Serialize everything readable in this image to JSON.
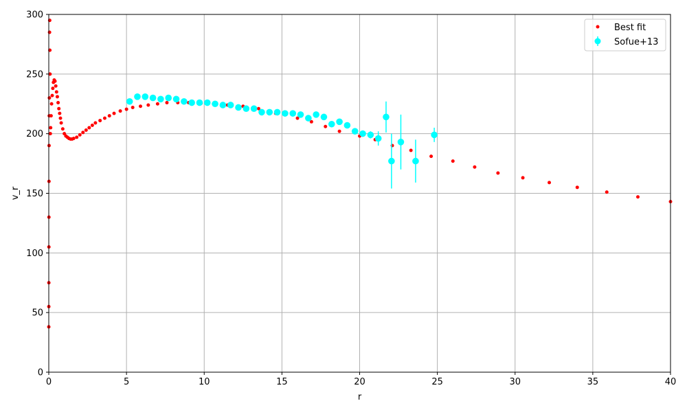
{
  "chart_data": {
    "type": "scatter",
    "title": "",
    "xlabel": "r",
    "ylabel": "v_r",
    "xlim": [
      0,
      40
    ],
    "ylim": [
      0,
      300
    ],
    "xticks": [
      0,
      5,
      10,
      15,
      20,
      25,
      30,
      35,
      40
    ],
    "yticks": [
      0,
      50,
      100,
      150,
      200,
      250,
      300
    ],
    "grid": true,
    "legend_position": "top-right",
    "series": [
      {
        "name": "Best fit",
        "marker": "small-dot",
        "color": "#ff0000",
        "x": [
          0.001,
          0.003,
          0.005,
          0.008,
          0.01,
          0.015,
          0.02,
          0.03,
          0.04,
          0.05,
          0.06,
          0.07,
          0.08,
          0.1,
          0.12,
          0.15,
          0.18,
          0.22,
          0.26,
          0.3,
          0.35,
          0.4,
          0.45,
          0.5,
          0.55,
          0.6,
          0.65,
          0.7,
          0.75,
          0.8,
          0.9,
          1.0,
          1.1,
          1.2,
          1.3,
          1.4,
          1.5,
          1.6,
          1.8,
          2.0,
          2.2,
          2.4,
          2.6,
          2.8,
          3.0,
          3.3,
          3.6,
          3.9,
          4.2,
          4.6,
          5.0,
          5.4,
          5.9,
          6.4,
          7.0,
          7.6,
          8.3,
          9.0,
          9.8,
          10.6,
          11.5,
          12.5,
          13.5,
          14.6,
          16.0,
          16.9,
          17.8,
          18.7,
          20.0,
          21.0,
          22.1,
          23.3,
          24.6,
          26.0,
          27.4,
          28.9,
          30.5,
          32.2,
          34.0,
          35.9,
          37.9,
          40.0
        ],
        "y": [
          38,
          55,
          75,
          105,
          130,
          160,
          190,
          215,
          230,
          285,
          295,
          270,
          250,
          200,
          205,
          215,
          225,
          232,
          238,
          243,
          245,
          244,
          240,
          235,
          231,
          226,
          221,
          217,
          213,
          209,
          204,
          200,
          198,
          197,
          196,
          195.5,
          195.5,
          196,
          197,
          199,
          201,
          203,
          205,
          207,
          209,
          211,
          213,
          215,
          217,
          219,
          220.5,
          222,
          223,
          224,
          225,
          226,
          226,
          226,
          225.5,
          225,
          224,
          223,
          221,
          217,
          213,
          210,
          206,
          202,
          198,
          195,
          190,
          186,
          181,
          177,
          172,
          167,
          163,
          159,
          155,
          151,
          147,
          143
        ]
      },
      {
        "name": "Sofue+13",
        "marker": "circle-errorbar",
        "color": "#00ffff",
        "x": [
          5.2,
          5.7,
          6.2,
          6.7,
          7.2,
          7.7,
          8.2,
          8.7,
          9.2,
          9.7,
          10.2,
          10.7,
          11.2,
          11.7,
          12.2,
          12.7,
          13.2,
          13.7,
          14.2,
          14.7,
          15.2,
          15.7,
          16.2,
          16.7,
          17.2,
          17.7,
          18.2,
          18.7,
          19.2,
          19.7,
          20.2,
          20.7,
          21.2,
          21.7,
          22.05,
          22.65,
          23.6,
          24.8
        ],
        "y": [
          227,
          231,
          231,
          230,
          229,
          230,
          229,
          227,
          226,
          226,
          226,
          225,
          224,
          224,
          222,
          221,
          221,
          218,
          218,
          218,
          217,
          217,
          216,
          213,
          216,
          214,
          208,
          210,
          207,
          202,
          200,
          199,
          196,
          214,
          177,
          193,
          177,
          199
        ],
        "yerr": [
          2,
          2,
          2,
          2,
          2,
          2,
          2,
          2,
          2,
          2,
          2,
          2,
          2,
          2,
          2,
          2,
          2,
          2,
          2,
          2,
          2,
          2,
          2,
          2,
          2,
          2,
          2,
          2,
          2,
          2,
          2,
          3,
          6,
          13,
          23,
          23,
          18,
          6
        ]
      }
    ]
  }
}
